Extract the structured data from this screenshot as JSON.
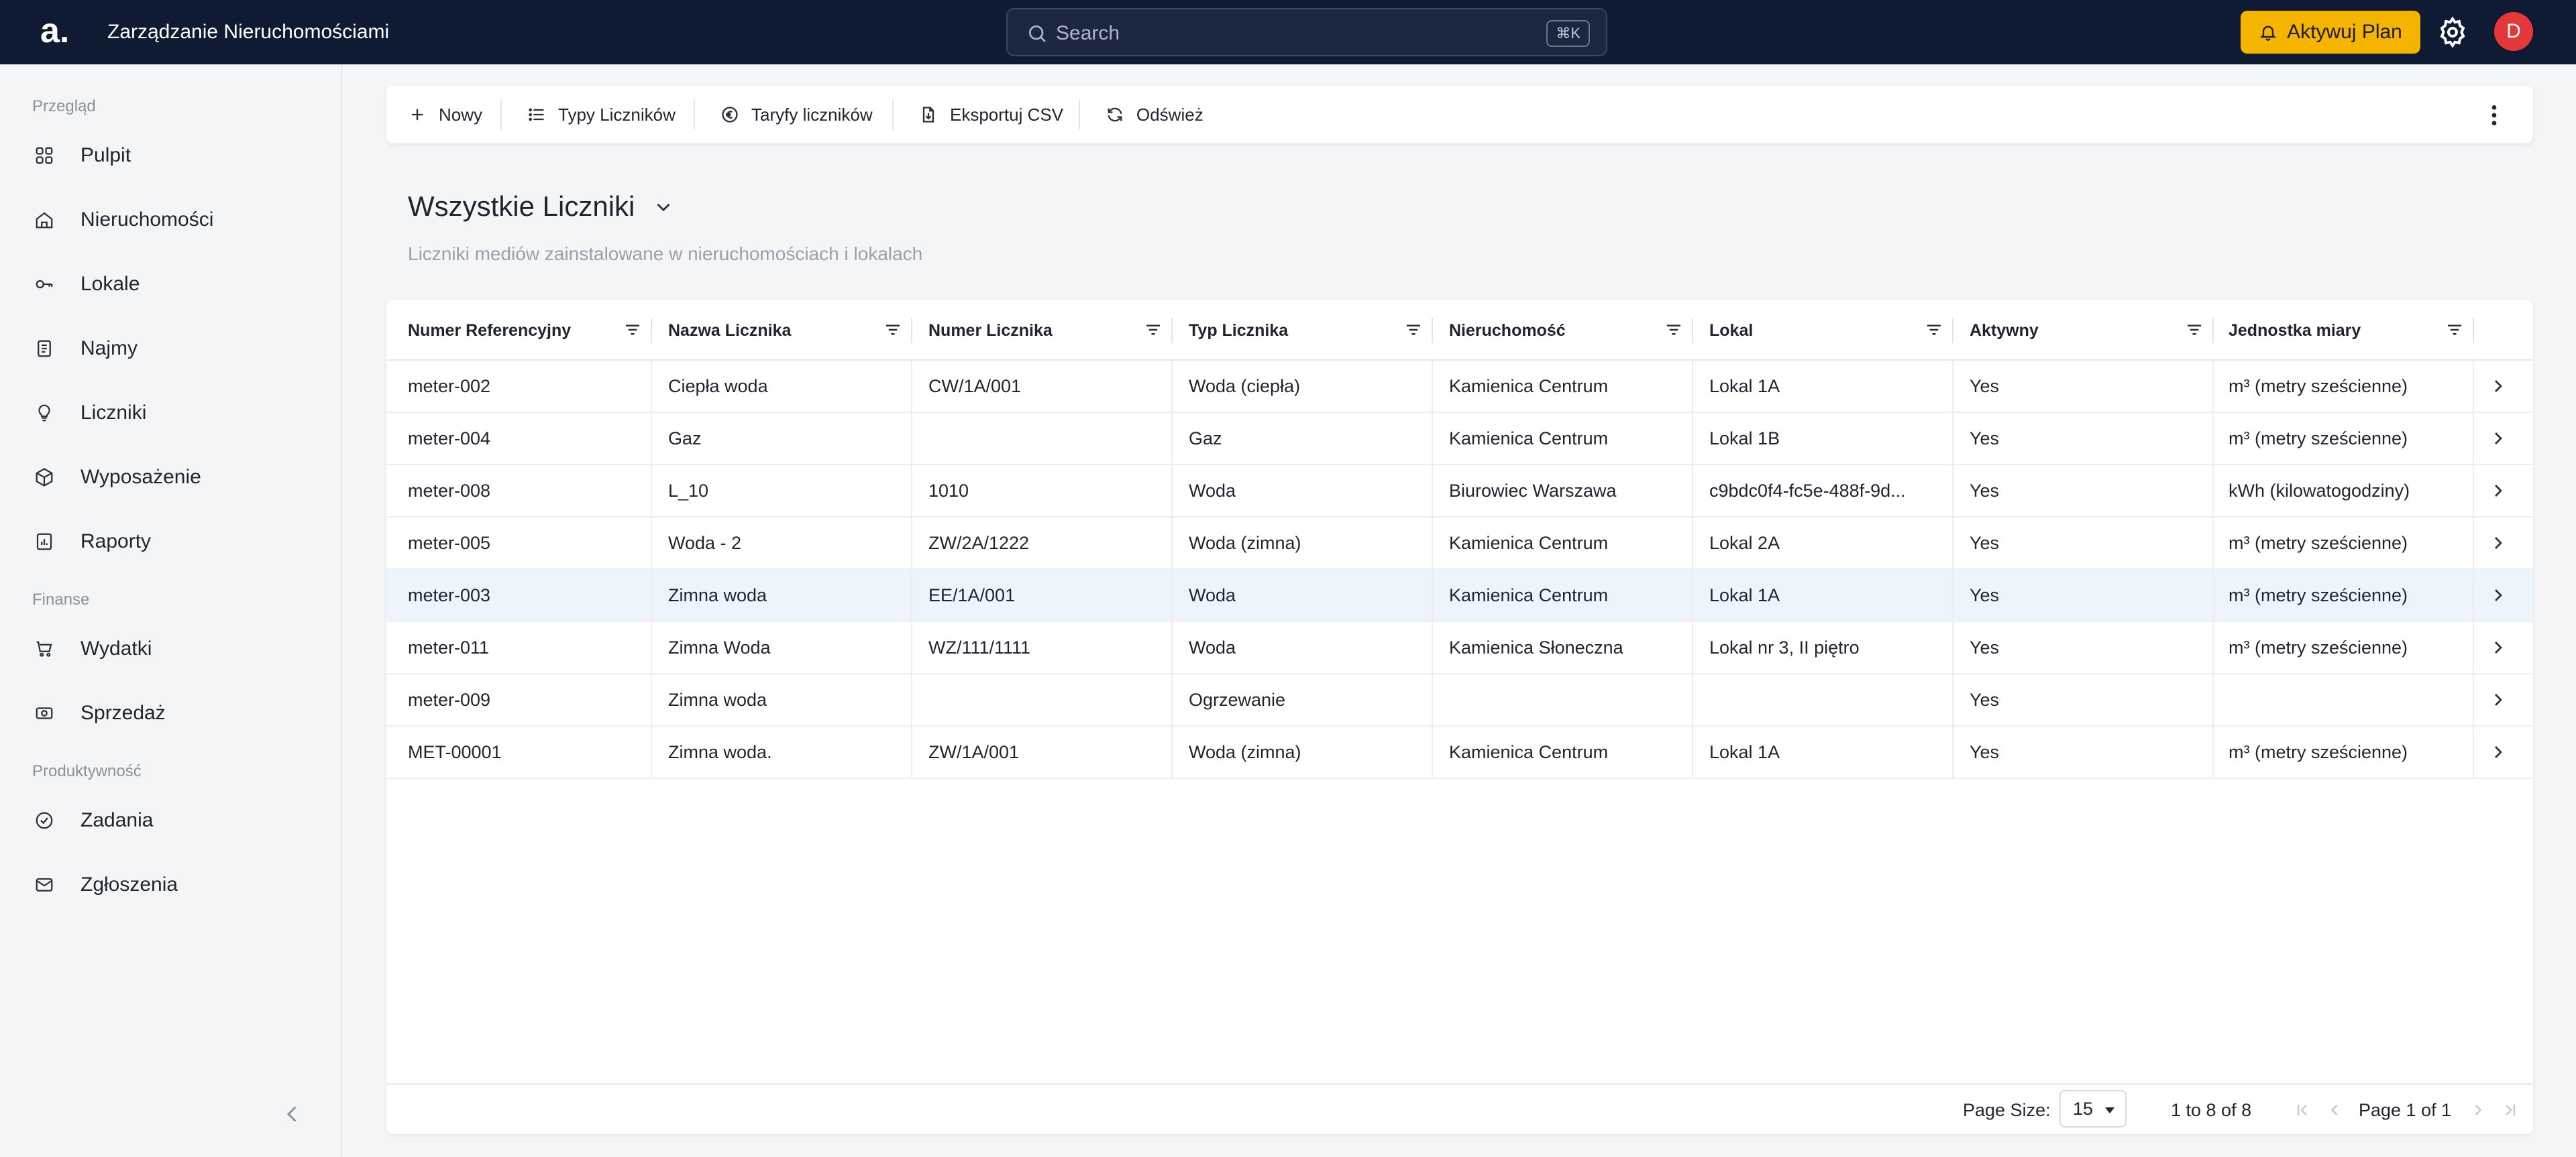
{
  "app": {
    "logo_text": "a.",
    "title": "Zarządzanie Nieruchomościami"
  },
  "search": {
    "placeholder": "Search",
    "shortcut": "⌘K"
  },
  "header": {
    "plan_button": "Aktywuj Plan",
    "avatar_initial": "D",
    "colors": {
      "bar": "#0f1b33",
      "plan": "#f4b400",
      "avatar": "#e5383b"
    }
  },
  "sidebar": {
    "sections": [
      {
        "label": "Przegląd",
        "items": [
          {
            "label": "Pulpit",
            "icon": "grid-icon"
          },
          {
            "label": "Nieruchomości",
            "icon": "building-icon"
          },
          {
            "label": "Lokale",
            "icon": "key-icon"
          },
          {
            "label": "Najmy",
            "icon": "document-icon"
          },
          {
            "label": "Liczniki",
            "icon": "bulb-icon"
          },
          {
            "label": "Wyposażenie",
            "icon": "box-icon"
          },
          {
            "label": "Raporty",
            "icon": "chart-icon"
          }
        ]
      },
      {
        "label": "Finanse",
        "items": [
          {
            "label": "Wydatki",
            "icon": "cart-icon"
          },
          {
            "label": "Sprzedaż",
            "icon": "cash-icon"
          }
        ]
      },
      {
        "label": "Produktywność",
        "items": [
          {
            "label": "Zadania",
            "icon": "check-circle-icon"
          },
          {
            "label": "Zgłoszenia",
            "icon": "mail-icon"
          }
        ]
      }
    ]
  },
  "toolbar": {
    "new": "Nowy",
    "types": "Typy Liczników",
    "tariffs": "Taryfy liczników",
    "export": "Eksportuj CSV",
    "refresh": "Odśwież"
  },
  "page": {
    "title": "Wszystkie Liczniki",
    "subtitle": "Liczniki mediów zainstalowane w nieruchomościach i lokalach"
  },
  "table": {
    "columns": [
      "Numer Referencyjny",
      "Nazwa Licznika",
      "Numer Licznika",
      "Typ Licznika",
      "Nieruchomość",
      "Lokal",
      "Aktywny",
      "Jednostka miary"
    ],
    "rows": [
      [
        "meter-002",
        "Ciepła woda",
        "CW/1A/001",
        "Woda (ciepła)",
        "Kamienica Centrum",
        "Lokal 1A",
        "Yes",
        "m³ (metry sześcienne)"
      ],
      [
        "meter-004",
        "Gaz",
        "",
        "Gaz",
        "Kamienica Centrum",
        "Lokal 1B",
        "Yes",
        "m³ (metry sześcienne)"
      ],
      [
        "meter-008",
        "L_10",
        "1010",
        "Woda",
        "Biurowiec Warszawa",
        "c9bdc0f4-fc5e-488f-9d...",
        "Yes",
        "kWh (kilowatogodziny)"
      ],
      [
        "meter-005",
        "Woda - 2",
        "ZW/2A/1222",
        "Woda (zimna)",
        "Kamienica Centrum",
        "Lokal 2A",
        "Yes",
        "m³ (metry sześcienne)"
      ],
      [
        "meter-003",
        "Zimna woda",
        "EE/1A/001",
        "Woda",
        "Kamienica Centrum",
        "Lokal 1A",
        "Yes",
        "m³ (metry sześcienne)"
      ],
      [
        "meter-011",
        "Zimna Woda",
        "WZ/111/1111",
        "Woda",
        "Kamienica Słoneczna",
        "Lokal nr 3, II piętro",
        "Yes",
        "m³ (metry sześcienne)"
      ],
      [
        "meter-009",
        "Zimna woda",
        "",
        "Ogrzewanie",
        "",
        "",
        "Yes",
        ""
      ],
      [
        "MET-00001",
        "Zimna woda.",
        "ZW/1A/001",
        "Woda (zimna)",
        "Kamienica Centrum",
        "Lokal 1A",
        "Yes",
        "m³ (metry sześcienne)"
      ]
    ],
    "selected_row_index": 4
  },
  "pagination": {
    "page_size_label": "Page Size:",
    "page_size": "15",
    "range": "1 to 8 of 8",
    "page": "Page 1 of 1"
  }
}
